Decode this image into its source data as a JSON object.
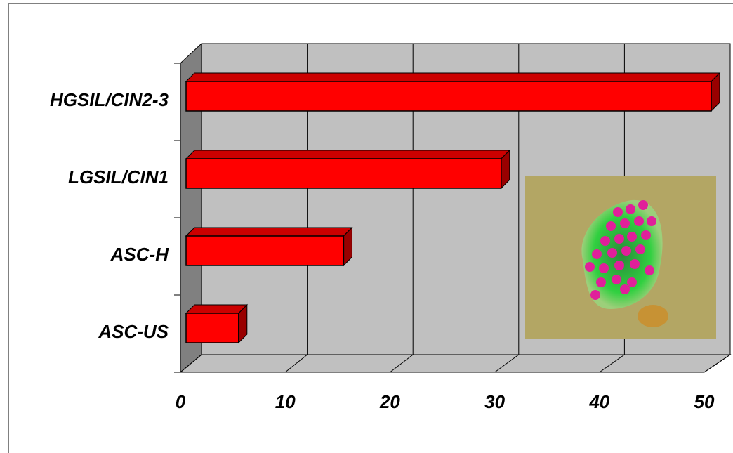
{
  "chart_data": {
    "type": "bar3d",
    "categories": [
      "HGSIL/CIN2-3",
      "LGSIL/CIN1",
      "ASC-H",
      "ASC-US"
    ],
    "values": [
      50,
      30,
      15,
      5
    ],
    "color": "#ff0000",
    "xlim": [
      0,
      50
    ],
    "xticks": [
      0,
      10,
      20,
      30,
      40,
      50
    ],
    "grid": true
  }
}
